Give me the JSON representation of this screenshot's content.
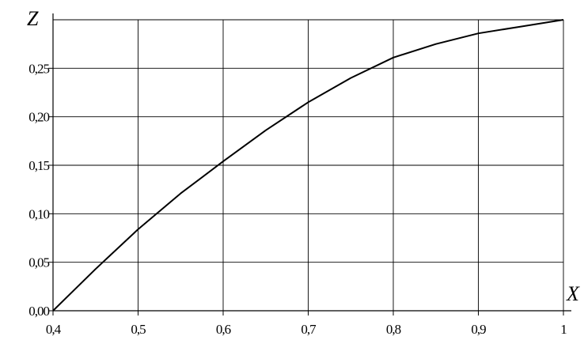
{
  "chart_data": {
    "type": "line",
    "title": "",
    "xlabel": "X",
    "ylabel": "Z",
    "xlim": [
      0.4,
      1.0
    ],
    "ylim": [
      0.0,
      0.3
    ],
    "grid": true,
    "x_ticks": [
      0.4,
      0.5,
      0.6,
      0.7,
      0.8,
      0.9,
      1.0
    ],
    "x_tick_labels": [
      "0,4",
      "0,5",
      "0,6",
      "0,7",
      "0,8",
      "0,9",
      "1"
    ],
    "y_ticks": [
      0.0,
      0.05,
      0.1,
      0.15,
      0.2,
      0.25
    ],
    "y_tick_labels": [
      "0,00",
      "0,05",
      "0,10",
      "0,15",
      "0,20",
      "0,25"
    ],
    "series": [
      {
        "x": [
          0.4,
          0.45,
          0.5,
          0.55,
          0.6,
          0.65,
          0.7,
          0.75,
          0.8,
          0.85,
          0.9,
          0.95,
          1.0
        ],
        "y": [
          0.0,
          0.043,
          0.084,
          0.121,
          0.154,
          0.186,
          0.215,
          0.24,
          0.261,
          0.275,
          0.286,
          0.293,
          0.3
        ],
        "color": "#000000"
      }
    ]
  }
}
